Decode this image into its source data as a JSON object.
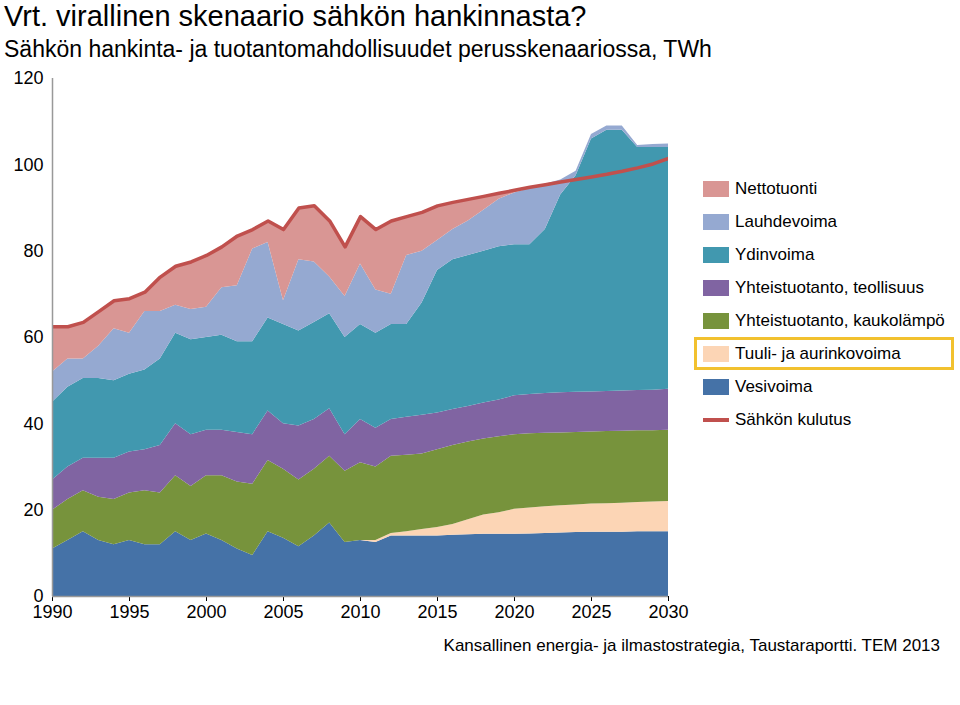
{
  "chart_data": {
    "type": "area",
    "title": "Vrt. virallinen skenaario sähkön hankinnasta?",
    "subtitle": "Sähkön hankinta- ja tuotantomahdollisuudet perusskenaariossa, TWh",
    "caption": "Kansallinen energia- ja ilmastostrategia, Taustaraportti. TEM 2013",
    "stacked": true,
    "x": [
      1990,
      1991,
      1992,
      1993,
      1994,
      1995,
      1996,
      1997,
      1998,
      1999,
      2000,
      2001,
      2002,
      2003,
      2004,
      2005,
      2006,
      2007,
      2008,
      2009,
      2010,
      2011,
      2012,
      2013,
      2014,
      2015,
      2016,
      2017,
      2018,
      2019,
      2020,
      2021,
      2022,
      2023,
      2024,
      2025,
      2026,
      2027,
      2028,
      2029,
      2030
    ],
    "xlim": [
      1990,
      2030
    ],
    "xticks": [
      1990,
      1995,
      2000,
      2005,
      2010,
      2015,
      2020,
      2025,
      2030
    ],
    "ylim": [
      0,
      120
    ],
    "yticks": [
      0,
      20,
      40,
      60,
      80,
      100,
      120
    ],
    "grid": false,
    "legend": "right",
    "series": [
      {
        "name": "Nettotuonti",
        "type": "area",
        "color": "#d99694",
        "values": [
          10.5,
          7.5,
          8.5,
          8,
          6.5,
          8,
          4.5,
          8,
          9,
          11,
          12,
          9.5,
          11.5,
          4.5,
          5,
          16.5,
          12,
          13,
          13,
          11.5,
          11,
          14,
          17,
          9,
          9,
          8,
          6.3,
          5,
          3.2,
          1.4,
          0.6,
          0,
          0,
          0,
          0,
          0,
          0,
          0,
          0,
          0,
          0
        ]
      },
      {
        "name": "Lauhdevoima",
        "type": "area",
        "color": "#95a9d1",
        "values": [
          7,
          6.5,
          4.5,
          7.5,
          12,
          9.5,
          13.5,
          11,
          6.5,
          7,
          7,
          11,
          13,
          21.5,
          17.5,
          5.5,
          16.5,
          14,
          8.5,
          9.5,
          14,
          10,
          7,
          16,
          12,
          7,
          7,
          8,
          9.5,
          11,
          12,
          13,
          10.5,
          3.5,
          1,
          1,
          1,
          1,
          0.5,
          0.7,
          0.8
        ]
      },
      {
        "name": "Ydinvoima",
        "type": "area",
        "color": "#4198af",
        "values": [
          18,
          18.5,
          18.5,
          18.5,
          18,
          18,
          18.5,
          20,
          21,
          22,
          21.5,
          22,
          21,
          21.5,
          21.5,
          23,
          22,
          22.5,
          22,
          22.5,
          22,
          22,
          22,
          21.5,
          26,
          33,
          34.7,
          35,
          35.2,
          35.5,
          35,
          34.7,
          38,
          45.8,
          50.2,
          58.6,
          60.5,
          60.4,
          56.3,
          56.2,
          56
        ]
      },
      {
        "name": "Yhteistuotanto, teollisuus",
        "type": "area",
        "color": "#8064a2",
        "values": [
          7,
          7.5,
          7.5,
          9,
          9.5,
          9.5,
          9.5,
          11,
          12,
          12,
          10.5,
          10.5,
          11.5,
          11.5,
          11.5,
          10.5,
          12.5,
          11.5,
          11,
          8.5,
          10,
          9,
          8.5,
          8.8,
          9,
          8.5,
          8.3,
          8.2,
          8.3,
          8.5,
          9,
          9.1,
          9.2,
          9.3,
          9.3,
          9.3,
          9.3,
          9.3,
          9.3,
          9.4,
          9.5
        ]
      },
      {
        "name": "Yhteistuotanto, kaukolämpö",
        "type": "area",
        "color": "#77933c",
        "values": [
          9,
          9.5,
          9.5,
          10,
          10.5,
          11,
          12.5,
          12,
          13,
          12.5,
          13.5,
          15,
          15.5,
          16.5,
          16.5,
          16,
          15.5,
          15.5,
          15.5,
          16.5,
          18,
          17,
          17.9,
          17.7,
          17.5,
          18,
          18.3,
          18,
          17.6,
          17.6,
          17.3,
          17.2,
          17,
          16.9,
          16.8,
          16.7,
          16.7,
          16.7,
          16.6,
          16.5,
          16.5
        ]
      },
      {
        "name": "Tuuli- ja aurinkovoima",
        "type": "area",
        "color": "#fcd5b5",
        "values": [
          0,
          0,
          0,
          0,
          0,
          0,
          0,
          0,
          0,
          0,
          0,
          0,
          0,
          0,
          0,
          0,
          0,
          0,
          0,
          0,
          0,
          0.5,
          0.6,
          1,
          1.5,
          2,
          2.5,
          3.5,
          4.5,
          5,
          5.8,
          6,
          6.2,
          6.3,
          6.4,
          6.5,
          6.6,
          6.7,
          6.8,
          6.9,
          7
        ]
      },
      {
        "name": "Vesivoima",
        "type": "area",
        "color": "#4572a7",
        "values": [
          11,
          13,
          15,
          13,
          12,
          13,
          12,
          12,
          15,
          13,
          14.5,
          13,
          11,
          9.5,
          15,
          13.5,
          11.5,
          14,
          17,
          12.5,
          13,
          12.5,
          14,
          14,
          14,
          14,
          14.2,
          14.3,
          14.4,
          14.4,
          14.4,
          14.5,
          14.6,
          14.7,
          14.8,
          14.9,
          14.9,
          14.9,
          15,
          15,
          15
        ]
      },
      {
        "name": "Sähkön kulutus",
        "type": "line",
        "color": "#c0504d",
        "values": [
          62.5,
          62.5,
          63.5,
          66,
          68.5,
          69,
          70.5,
          74,
          76.5,
          77.5,
          79,
          81,
          83.5,
          85,
          87,
          85,
          90,
          90.5,
          87,
          81,
          88,
          85,
          87,
          88,
          89,
          90.5,
          91.3,
          92,
          92.7,
          93.4,
          94.1,
          94.8,
          95.4,
          96,
          96.6,
          97.2,
          97.8,
          98.5,
          99.3,
          100.2,
          101.5
        ]
      }
    ]
  }
}
